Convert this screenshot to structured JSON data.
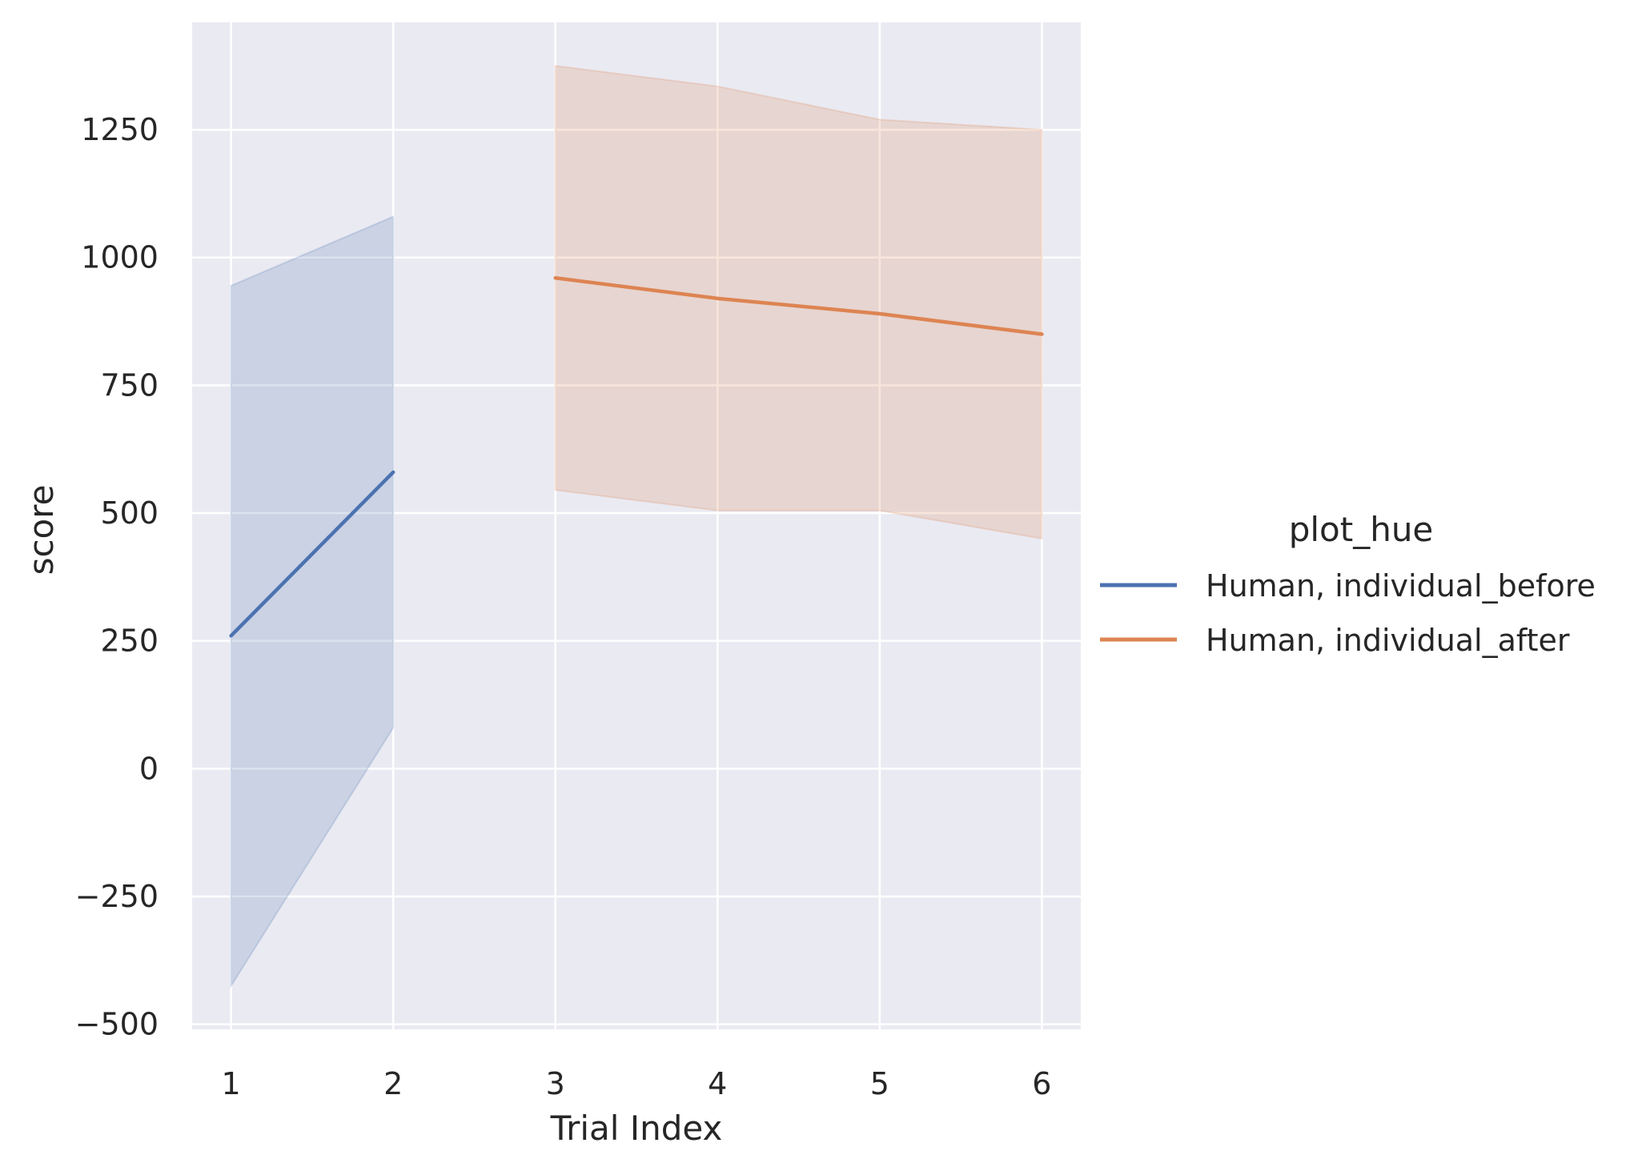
{
  "chart_data": {
    "type": "line",
    "title": "",
    "xlabel": "Trial Index",
    "ylabel": "score",
    "xlim": [
      0.76,
      6.24
    ],
    "ylim": [
      -510,
      1460
    ],
    "x_ticks": [
      1,
      2,
      3,
      4,
      5,
      6
    ],
    "x_tick_labels": [
      "1",
      "2",
      "3",
      "4",
      "5",
      "6"
    ],
    "y_ticks": [
      -500,
      -250,
      0,
      250,
      500,
      750,
      1000,
      1250
    ],
    "y_tick_labels": [
      "−500",
      "−250",
      "0",
      "250",
      "500",
      "750",
      "1000",
      "1250"
    ],
    "grid": true,
    "legend": {
      "title": "plot_hue",
      "placement": "right"
    },
    "series": [
      {
        "name": "Human, individual_before",
        "color": "#4c72b0",
        "x": [
          1,
          2
        ],
        "y": [
          260,
          580
        ],
        "ci_lower": [
          -425,
          80
        ],
        "ci_upper": [
          945,
          1080
        ]
      },
      {
        "name": "Human, individual_after",
        "color": "#dd8452",
        "x": [
          3,
          4,
          5,
          6
        ],
        "y": [
          960,
          920,
          890,
          850
        ],
        "ci_lower": [
          545,
          505,
          505,
          450
        ],
        "ci_upper": [
          1375,
          1335,
          1270,
          1250
        ]
      }
    ]
  }
}
